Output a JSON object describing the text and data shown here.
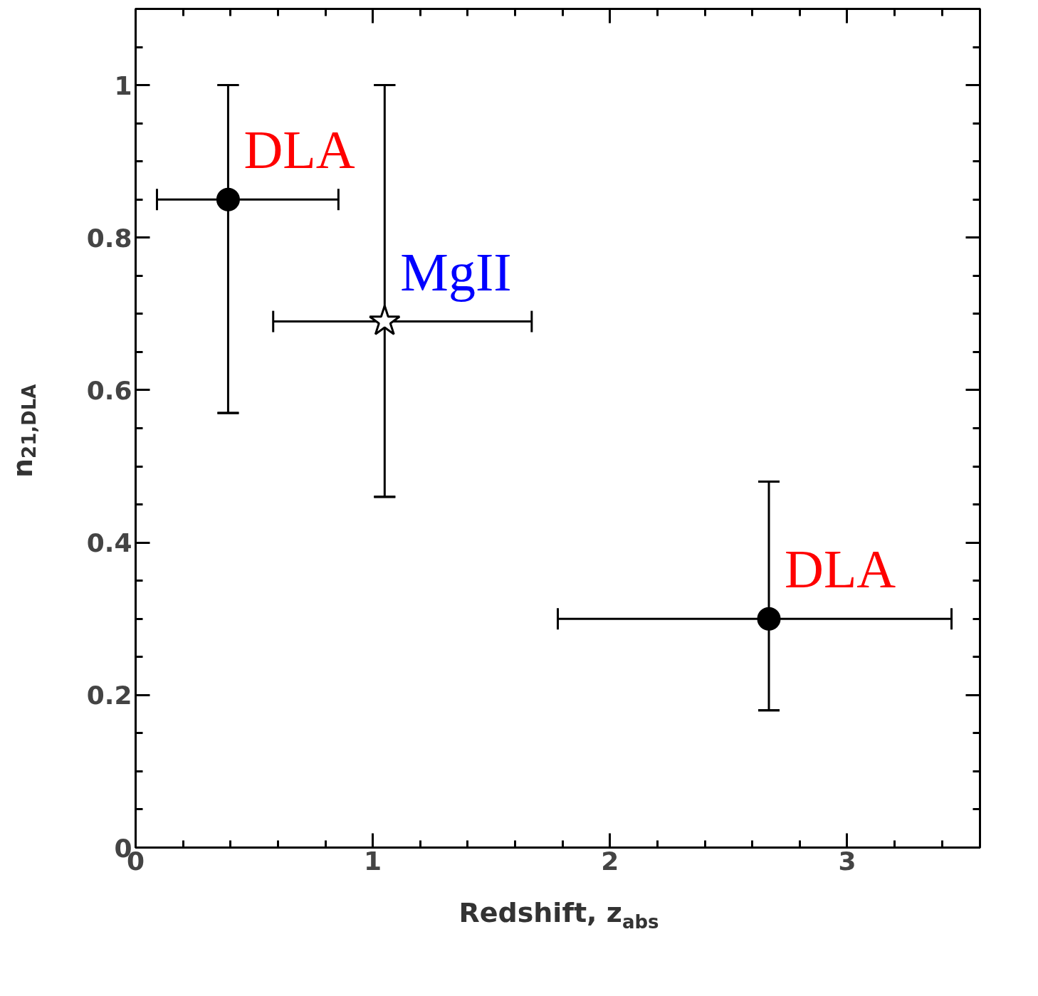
{
  "chart_data": {
    "type": "scatter",
    "xlabel": "Redshift, z$_{abs}$",
    "ylabel": "n$_{21,DLA}$",
    "xlim": [
      0,
      3.56
    ],
    "ylim": [
      0,
      1.1
    ],
    "xticks": [
      0,
      1,
      2,
      3
    ],
    "yticks": [
      0,
      0.2,
      0.4,
      0.6,
      0.8,
      1
    ],
    "grid": false,
    "series": [
      {
        "color": "#000000",
        "marker": "circle",
        "x": [
          0.39,
          2.67
        ],
        "values": [
          0.85,
          0.3
        ],
        "errors": [
          [
            0.57,
            1.0
          ],
          [
            0.18,
            0.48
          ]
        ],
        "xerrors": [
          [
            0.09,
            0.855
          ],
          [
            1.78,
            3.44
          ]
        ]
      },
      {
        "color": "#000000",
        "marker": "star",
        "x": [
          1.05
        ],
        "values": [
          0.69
        ],
        "errors": [
          [
            0.46,
            1.0
          ]
        ],
        "xerrors": [
          [
            0.58,
            1.67
          ]
        ]
      }
    ],
    "annotations": [
      {
        "text": "DLA",
        "x": 0.39,
        "y": 0.85
      },
      {
        "text": "MgII",
        "x": 1.05,
        "y": 0.69
      },
      {
        "text": "DLA",
        "x": 2.67,
        "y": 0.3
      }
    ]
  }
}
